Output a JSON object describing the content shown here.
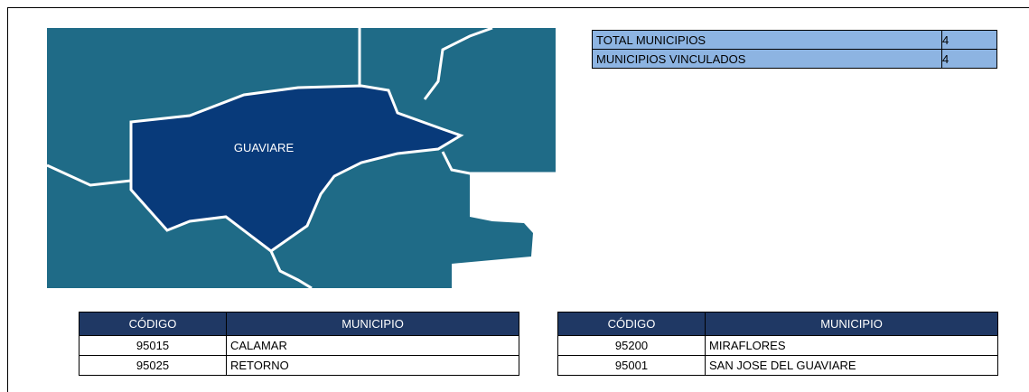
{
  "map": {
    "label": "GUAVIARE"
  },
  "summary": {
    "rows": [
      [
        "TOTAL MUNICIPIOS",
        "4"
      ],
      [
        "MUNICIPIOS VINCULADOS",
        "4"
      ]
    ]
  },
  "tables": [
    {
      "header": [
        "CÓDIGO",
        "MUNICIPIO"
      ],
      "rows": [
        [
          "95015",
          "CALAMAR"
        ],
        [
          "95025",
          "RETORNO"
        ]
      ]
    },
    {
      "header": [
        "CÓDIGO",
        "MUNICIPIO"
      ],
      "rows": [
        [
          "95200",
          "MIRAFLORES"
        ],
        [
          "95001",
          "SAN JOSE DEL GUAVIARE"
        ]
      ]
    }
  ]
}
